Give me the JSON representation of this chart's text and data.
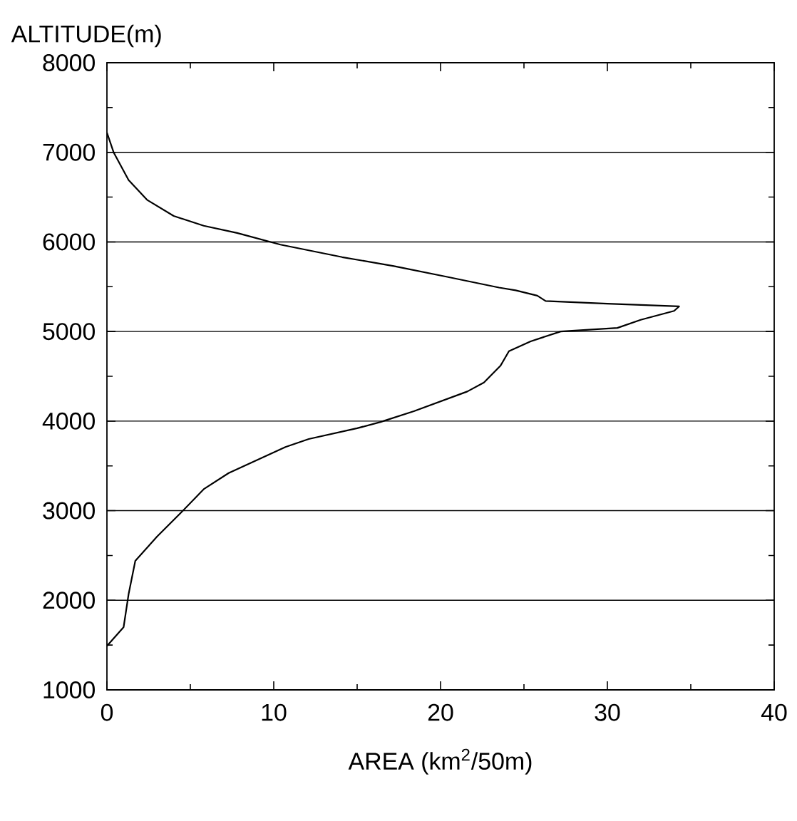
{
  "chart_data": {
    "type": "line",
    "xlabel": "AREA (km$^{2}$/50m)",
    "ylabel": "ALTITUDE(m)",
    "xlim": [
      0,
      40
    ],
    "ylim": [
      1000,
      8000
    ],
    "xticks": [
      0,
      10,
      20,
      30,
      40
    ],
    "yticks": [
      1000,
      2000,
      3000,
      4000,
      5000,
      6000,
      7000,
      8000
    ],
    "grid": "y",
    "series": [
      {
        "color": "#000000",
        "x": [
          0,
          0.4,
          1.3,
          2.4,
          4.0,
          5.8,
          7.8,
          10.4,
          14.1,
          17.2,
          20.4,
          23.5,
          24.5,
          25.8,
          26.3,
          30,
          34.3,
          34.0,
          32,
          30.6,
          27.2,
          25.4,
          24.1,
          23.6,
          22.6,
          21.6,
          18.4,
          16.4,
          15.0,
          12.1,
          10.7,
          7.3,
          5.8,
          4.4,
          3.0,
          1.7,
          1.3,
          1.0,
          0
        ],
        "values": [
          7220,
          7000,
          6690,
          6470,
          6290,
          6180,
          6100,
          5970,
          5830,
          5730,
          5610,
          5490,
          5460,
          5400,
          5340,
          5310,
          5280,
          5230,
          5130,
          5040,
          5000,
          4890,
          4780,
          4620,
          4430,
          4330,
          4110,
          3990,
          3920,
          3800,
          3710,
          3420,
          3240,
          2970,
          2710,
          2440,
          2070,
          1700,
          1490
        ]
      }
    ]
  }
}
